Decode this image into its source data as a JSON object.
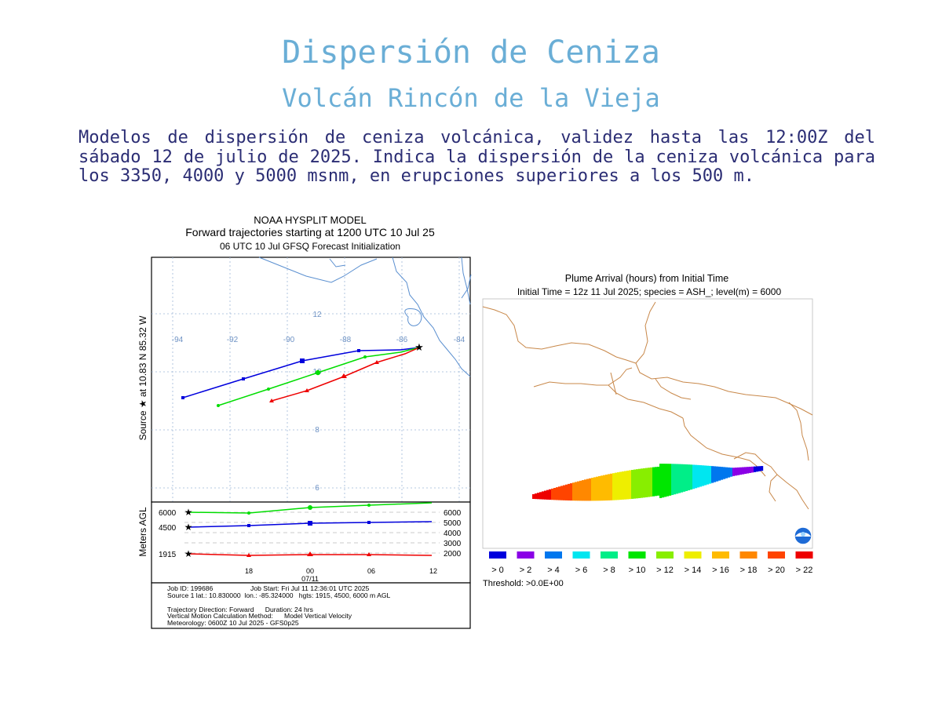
{
  "header": {
    "title": "Dispersión de Ceniza",
    "subtitle": "Volcán Rincón de la Vieja"
  },
  "description": "Modelos de dispersión de ceniza volcánica, validez hasta las 12:00Z del sábado 12 de julio de 2025. Indica la dispersión de la ceniza volcánica para los 3350, 4000 y 5000 msnm, en erupciones superiores a los 500 m.",
  "trajectory_chart": {
    "title_lines": [
      "NOAA HYSPLIT MODEL",
      "Forward trajectories starting at 1200 UTC 10 Jul 25",
      "06 UTC 10 Jul    GFSQ  Forecast Initialization"
    ],
    "y_side_label": "Source ★ at   10.83 N   85.32 W",
    "lon_labels": [
      "-94",
      "-92",
      "-90",
      "-88",
      "-86",
      "-84"
    ],
    "lat_labels": [
      "12",
      "10",
      "8",
      "6"
    ],
    "height_axis_label": "Meters AGL",
    "height_left_labels": [
      "6000",
      "4500",
      "1915"
    ],
    "height_right_labels": [
      "6000",
      "5000",
      "4000",
      "3000",
      "2000"
    ],
    "time_labels": [
      "18",
      "00",
      "06",
      "12"
    ],
    "date_label": "07/11",
    "info_lines": [
      "Job ID: 199686                    Job Start: Fri Jul 11 12:36:01 UTC 2025",
      "Source 1 lat.: 10.830000  lon.: -85.324000   hgts: 1915, 4500, 6000 m AGL",
      "",
      "Trajectory Direction: Forward      Duration: 24 hrs",
      "Vertical Motion Calculation Method:      Model Vertical Velocity",
      "Meteorology: 0600Z 10 Jul 2025 - GFS0p25"
    ]
  },
  "plume_chart": {
    "title": "Plume Arrival (hours) from Initial Time",
    "subtitle": "Initial Time = 12z 11 Jul 2025;  species = ASH_;  level(m) =  6000",
    "legend": [
      {
        "label": "> 0",
        "color": "#0000dd"
      },
      {
        "label": "> 2",
        "color": "#8a00e6"
      },
      {
        "label": "> 4",
        "color": "#0077ee"
      },
      {
        "label": "> 6",
        "color": "#00e6f0"
      },
      {
        "label": "> 8",
        "color": "#00ee88"
      },
      {
        "label": "> 10",
        "color": "#00e600"
      },
      {
        "label": "> 12",
        "color": "#88ee00"
      },
      {
        "label": "> 14",
        "color": "#eeee00"
      },
      {
        "label": "> 16",
        "color": "#ffbb00"
      },
      {
        "label": "> 18",
        "color": "#ff8800"
      },
      {
        "label": "> 20",
        "color": "#ff4400"
      },
      {
        "label": "> 22",
        "color": "#ee0000"
      }
    ],
    "threshold": "Threshold: >0.0E+00"
  }
}
